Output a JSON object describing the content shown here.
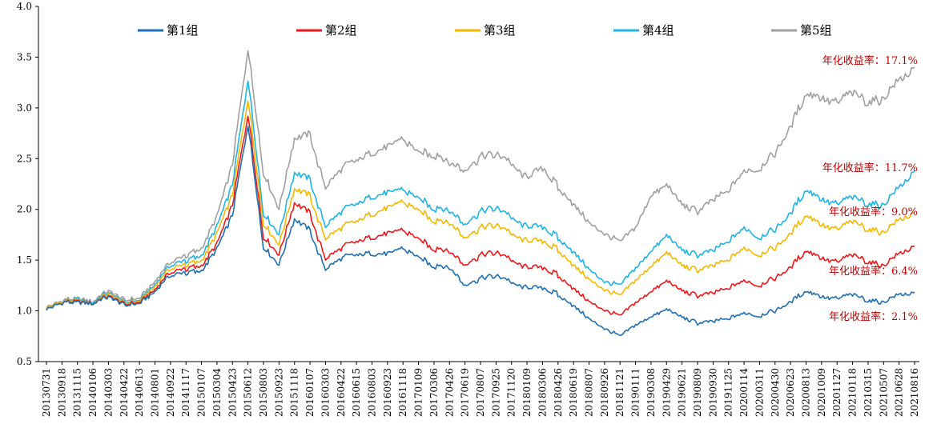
{
  "chart_data": {
    "type": "line",
    "ylim": [
      0.5,
      4.0
    ],
    "yticks": [
      "0.5",
      "1.0",
      "1.5",
      "2.0",
      "2.5",
      "3.0",
      "3.5",
      "4.0"
    ],
    "grid": false,
    "legend_position": "top",
    "x": [
      "20130731",
      "20130918",
      "20131115",
      "20140106",
      "20140303",
      "20140422",
      "20140613",
      "20140801",
      "20140922",
      "20141117",
      "20150107",
      "20150304",
      "20150423",
      "20150612",
      "20150803",
      "20150923",
      "20151118",
      "20160107",
      "20160303",
      "20160422",
      "20160615",
      "20160803",
      "20160923",
      "20161118",
      "20170109",
      "20170306",
      "20170426",
      "20170619",
      "20170807",
      "20170925",
      "20171120",
      "20180109",
      "20180306",
      "20180426",
      "20180619",
      "20180807",
      "20180926",
      "20181121",
      "20190111",
      "20190308",
      "20190429",
      "20190621",
      "20190809",
      "20190930",
      "20191125",
      "20200114",
      "20200311",
      "20200430",
      "20200623",
      "20200813",
      "20201009",
      "20201127",
      "20210118",
      "20210315",
      "20210507",
      "20210628",
      "20210816"
    ],
    "series": [
      {
        "name": "第1组",
        "color": "#1F6FB5",
        "values": [
          1.03,
          1.08,
          1.08,
          1.07,
          1.14,
          1.05,
          1.07,
          1.2,
          1.35,
          1.38,
          1.4,
          1.6,
          1.95,
          2.85,
          1.62,
          1.45,
          1.92,
          1.78,
          1.4,
          1.52,
          1.55,
          1.56,
          1.55,
          1.62,
          1.52,
          1.45,
          1.42,
          1.25,
          1.32,
          1.35,
          1.28,
          1.22,
          1.22,
          1.16,
          1.05,
          0.93,
          0.82,
          0.75,
          0.86,
          0.95,
          1.02,
          0.94,
          0.88,
          0.9,
          0.92,
          0.98,
          0.95,
          1.0,
          1.08,
          1.2,
          1.14,
          1.12,
          1.16,
          1.1,
          1.09,
          1.15,
          1.18
        ]
      },
      {
        "name": "第2组",
        "color": "#F01818",
        "values": [
          1.03,
          1.08,
          1.09,
          1.07,
          1.15,
          1.06,
          1.08,
          1.22,
          1.38,
          1.42,
          1.45,
          1.65,
          2.05,
          2.95,
          1.72,
          1.55,
          2.08,
          1.95,
          1.5,
          1.62,
          1.68,
          1.72,
          1.75,
          1.8,
          1.7,
          1.62,
          1.58,
          1.45,
          1.55,
          1.58,
          1.5,
          1.42,
          1.42,
          1.35,
          1.22,
          1.1,
          1.0,
          0.95,
          1.08,
          1.2,
          1.3,
          1.2,
          1.15,
          1.18,
          1.22,
          1.3,
          1.25,
          1.32,
          1.42,
          1.6,
          1.52,
          1.48,
          1.55,
          1.48,
          1.45,
          1.55,
          1.64
        ]
      },
      {
        "name": "第3组",
        "color": "#F5B800",
        "values": [
          1.04,
          1.09,
          1.1,
          1.07,
          1.17,
          1.07,
          1.09,
          1.25,
          1.42,
          1.46,
          1.5,
          1.75,
          2.15,
          3.1,
          1.85,
          1.65,
          2.22,
          2.12,
          1.7,
          1.82,
          1.88,
          1.95,
          2.0,
          2.08,
          1.98,
          1.9,
          1.86,
          1.72,
          1.82,
          1.85,
          1.76,
          1.68,
          1.68,
          1.6,
          1.45,
          1.32,
          1.2,
          1.15,
          1.3,
          1.45,
          1.58,
          1.45,
          1.4,
          1.45,
          1.5,
          1.62,
          1.55,
          1.62,
          1.75,
          1.95,
          1.85,
          1.8,
          1.88,
          1.8,
          1.78,
          1.88,
          1.97
        ]
      },
      {
        "name": "第4组",
        "color": "#1FB4E8",
        "values": [
          1.04,
          1.09,
          1.11,
          1.08,
          1.18,
          1.08,
          1.1,
          1.27,
          1.45,
          1.5,
          1.55,
          1.82,
          2.25,
          3.3,
          1.95,
          1.75,
          2.38,
          2.28,
          1.82,
          1.98,
          2.05,
          2.12,
          2.15,
          2.2,
          2.1,
          2.02,
          1.98,
          1.85,
          1.98,
          2.02,
          1.92,
          1.82,
          1.82,
          1.72,
          1.58,
          1.42,
          1.28,
          1.25,
          1.42,
          1.6,
          1.75,
          1.6,
          1.55,
          1.6,
          1.68,
          1.82,
          1.72,
          1.8,
          1.95,
          2.2,
          2.1,
          2.05,
          2.12,
          2.05,
          2.05,
          2.2,
          2.38
        ]
      },
      {
        "name": "第5组",
        "color": "#A0A0A0",
        "values": [
          1.05,
          1.1,
          1.12,
          1.09,
          1.2,
          1.1,
          1.12,
          1.3,
          1.48,
          1.55,
          1.62,
          1.92,
          2.45,
          3.6,
          2.35,
          2.0,
          2.72,
          2.72,
          2.2,
          2.4,
          2.48,
          2.55,
          2.6,
          2.7,
          2.55,
          2.55,
          2.45,
          2.38,
          2.52,
          2.55,
          2.45,
          2.3,
          2.4,
          2.22,
          2.05,
          1.88,
          1.75,
          1.68,
          1.82,
          2.15,
          2.25,
          2.05,
          1.98,
          2.1,
          2.18,
          2.38,
          2.4,
          2.55,
          2.8,
          3.15,
          3.1,
          3.05,
          3.15,
          3.05,
          3.1,
          3.25,
          3.4
        ]
      }
    ],
    "annotations": [
      {
        "text": "年化收益率：17.1%",
        "series": "第5组",
        "color": "#C00000"
      },
      {
        "text": "年化收益率：11.7%",
        "series": "第4组",
        "color": "#C00000"
      },
      {
        "text": "年化收益率：9.0%",
        "series": "第3组",
        "color": "#C00000"
      },
      {
        "text": "年化收益率：6.4%",
        "series": "第2组",
        "color": "#C00000"
      },
      {
        "text": "年化收益率：2.1%",
        "series": "第1组",
        "color": "#C00000"
      }
    ]
  }
}
